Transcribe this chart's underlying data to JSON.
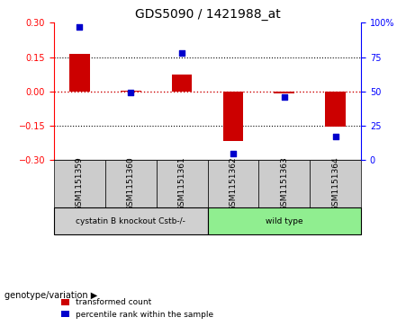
{
  "title": "GDS5090 / 1421988_at",
  "samples": [
    "GSM1151359",
    "GSM1151360",
    "GSM1151361",
    "GSM1151362",
    "GSM1151363",
    "GSM1151364"
  ],
  "bar_values": [
    0.165,
    0.005,
    0.075,
    -0.215,
    -0.01,
    -0.155
  ],
  "percentile_values": [
    97,
    49,
    78,
    5,
    46,
    17
  ],
  "groups": [
    {
      "label": "cystatin B knockout Cstb-/-",
      "samples": [
        0,
        1,
        2
      ],
      "color": "#90EE90"
    },
    {
      "label": "wild type",
      "samples": [
        3,
        4,
        5
      ],
      "color": "#90EE90"
    }
  ],
  "group_label": "genotype/variation",
  "ylim": [
    -0.3,
    0.3
  ],
  "y2lim": [
    0,
    100
  ],
  "yticks": [
    -0.3,
    -0.15,
    0,
    0.15,
    0.3
  ],
  "y2ticks": [
    0,
    25,
    50,
    75,
    100
  ],
  "bar_color": "#CC0000",
  "dot_color": "#0000CC",
  "zero_line_color": "#CC0000",
  "grid_color": "#000000",
  "legend_bar_label": "transformed count",
  "legend_dot_label": "percentile rank within the sample",
  "bar_width": 0.4,
  "group1_color": "#d0d0d0",
  "group2_color": "#90EE90"
}
